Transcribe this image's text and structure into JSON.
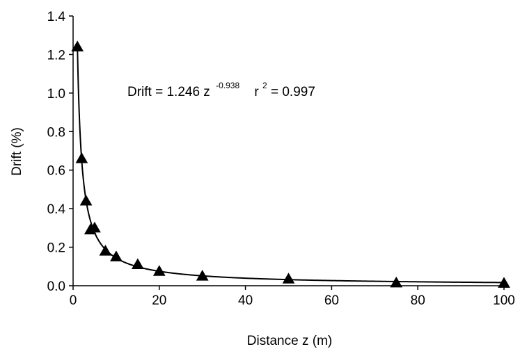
{
  "chart_data": {
    "type": "scatter",
    "xlabel": "Distance z (m)",
    "ylabel": "Drift (%)",
    "xlim": [
      0,
      100
    ],
    "ylim": [
      0,
      1.4
    ],
    "x_ticks": [
      "0",
      "20",
      "40",
      "60",
      "80",
      "100"
    ],
    "y_ticks": [
      "0.0",
      "0.2",
      "0.4",
      "0.6",
      "0.8",
      "1.0",
      "1.2",
      "1.4"
    ],
    "grid": false,
    "marker": "triangle",
    "series": [
      {
        "points": [
          {
            "x": 1,
            "y": 1.24
          },
          {
            "x": 2,
            "y": 0.66
          },
          {
            "x": 3,
            "y": 0.44
          },
          {
            "x": 4,
            "y": 0.29
          },
          {
            "x": 5,
            "y": 0.3
          },
          {
            "x": 7.5,
            "y": 0.18
          },
          {
            "x": 10,
            "y": 0.15
          },
          {
            "x": 15,
            "y": 0.11
          },
          {
            "x": 20,
            "y": 0.075
          },
          {
            "x": 30,
            "y": 0.05
          },
          {
            "x": 50,
            "y": 0.035
          },
          {
            "x": 75,
            "y": 0.015
          },
          {
            "x": 100,
            "y": 0.013
          }
        ]
      }
    ],
    "fit_curve": {
      "a": 1.246,
      "b": -0.938
    },
    "annotation": {
      "prefix": "Drift = 1.246 z",
      "exponent": "-0.938",
      "r_label": "r",
      "r_exponent": "2",
      "r_value": " = 0.997"
    }
  }
}
